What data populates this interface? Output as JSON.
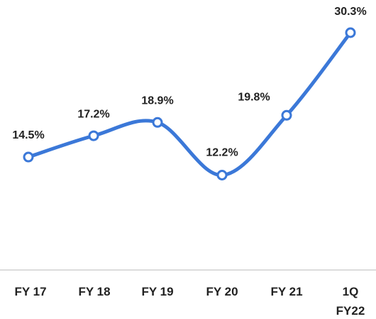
{
  "chart_data": {
    "type": "line",
    "categories": [
      "FY 17",
      "FY 18",
      "FY 19",
      "FY 20",
      "FY 21",
      "1Q FY22"
    ],
    "series": [
      {
        "color": "#3b78d8",
        "values": [
          14.5,
          17.2,
          18.9,
          12.2,
          19.8,
          30.3
        ],
        "value_labels": [
          "14.5%",
          "17.2%",
          "18.9%",
          "12.2%",
          "19.8%",
          "30.3%"
        ]
      }
    ]
  }
}
